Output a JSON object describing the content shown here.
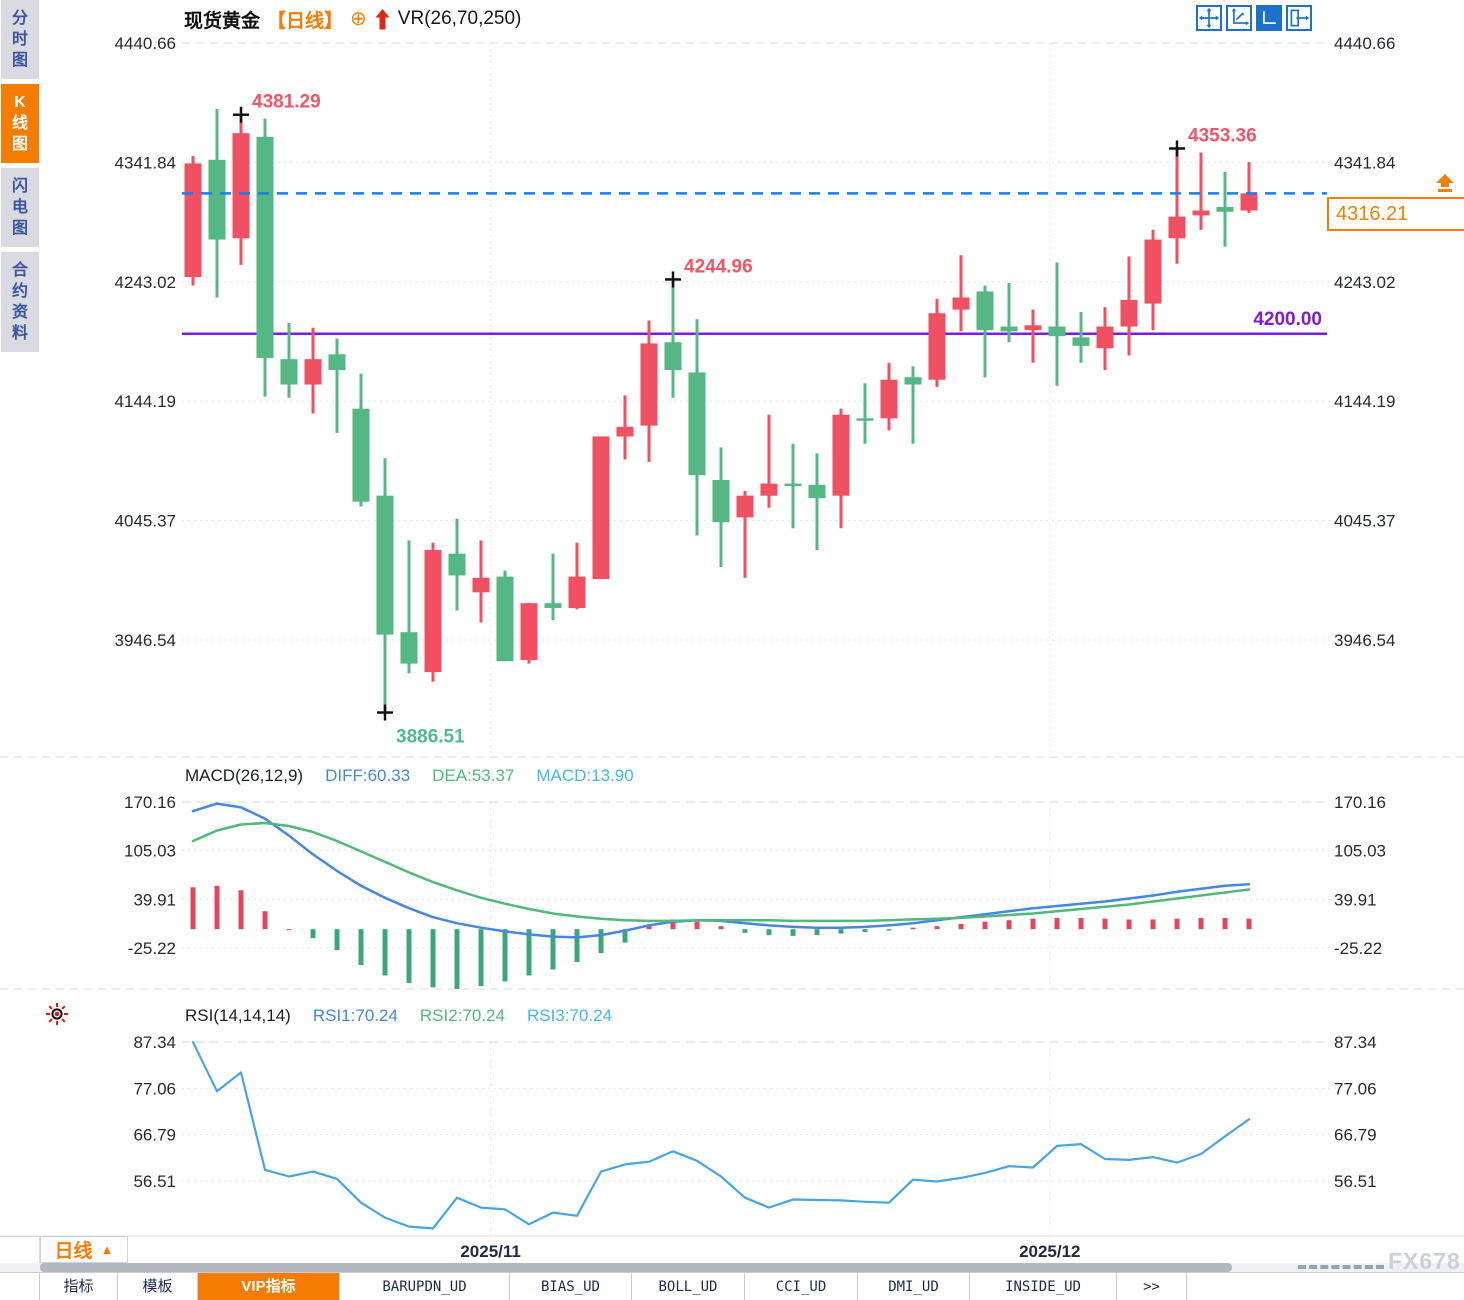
{
  "header": {
    "symbol": "现货黄金",
    "period": "【日线】",
    "indicator": "VR(26,70,250)"
  },
  "sidebar": {
    "items": [
      {
        "label": "分时图",
        "active": false
      },
      {
        "label": "K线图",
        "active": true
      },
      {
        "label": "闪电图",
        "active": false
      },
      {
        "label": "合约资料",
        "active": false
      }
    ]
  },
  "toolbar": {
    "icons": [
      {
        "name": "move-icon",
        "active": false
      },
      {
        "name": "fit-axis-icon",
        "active": false
      },
      {
        "name": "auto-scale-icon",
        "active": true
      },
      {
        "name": "pan-right-icon",
        "active": false
      }
    ]
  },
  "price_tag": {
    "value": "4316.21"
  },
  "macd_header": {
    "name": "MACD(26,12,9)",
    "diff": "DIFF:60.33",
    "dea": "DEA:53.37",
    "macd": "MACD:13.90"
  },
  "rsi_header": {
    "name": "RSI(14,14,14)",
    "rsi1": "RSI1:70.24",
    "rsi2": "RSI2:70.24",
    "rsi3": "RSI3:70.24"
  },
  "bottom": {
    "period_label": "日线",
    "tabs": [
      {
        "label": "指标",
        "active": false
      },
      {
        "label": "模板",
        "active": false
      },
      {
        "label": "VIP指标",
        "active": true
      },
      {
        "label": "BARUPDN_UD",
        "active": false
      },
      {
        "label": "BIAS_UD",
        "active": false
      },
      {
        "label": "BOLL_UD",
        "active": false
      },
      {
        "label": "CCI_UD",
        "active": false
      },
      {
        "label": "DMI_UD",
        "active": false
      },
      {
        "label": "INSIDE_UD",
        "active": false
      },
      {
        "label": ">>",
        "active": false
      }
    ],
    "watermark": "FX678"
  },
  "colors": {
    "up": "#f05062",
    "down": "#54b784",
    "accent_orange": "#f57c00",
    "blue_line": "#1b7de6",
    "purple_line": "#7c1ae8",
    "diff": "#4687e0",
    "dea": "#52b87c",
    "macd_cyan": "#45b8e8",
    "rsi": "#49a5e0",
    "hist_up": "#e8445a",
    "hist_down": "#3aa878",
    "high_label": "#f25568",
    "low_label": "#4fbb92",
    "axis_text": "#262a33",
    "date_text": "#222c44"
  },
  "chart_data": {
    "type": "candlestick",
    "title": "现货黄金 日线",
    "y_axis_ticks": [
      4440.66,
      4341.84,
      4243.02,
      4144.19,
      4045.37,
      3946.54
    ],
    "x_axis_labels": [
      {
        "label": "2025/11",
        "at_candle": 12.4
      },
      {
        "label": "2025/12",
        "at_candle": 35.7
      }
    ],
    "support_line": {
      "price": 4200.0,
      "label": "4200.00"
    },
    "last_price_line": {
      "price": 4316.21,
      "label": "4316.21"
    },
    "annotations": [
      {
        "price": 4381.29,
        "candle": 2,
        "type": "high"
      },
      {
        "price": 3886.51,
        "candle": 8,
        "type": "low"
      },
      {
        "price": 4244.96,
        "candle": 20,
        "type": "high"
      },
      {
        "price": 4353.36,
        "candle": 41,
        "type": "high"
      }
    ],
    "candles": [
      [
        4247,
        4347,
        4240,
        4341
      ],
      [
        4344,
        4386,
        4230,
        4278
      ],
      [
        4279,
        4381.29,
        4257,
        4366
      ],
      [
        4363,
        4378,
        4148,
        4180
      ],
      [
        4179,
        4209,
        4147,
        4158
      ],
      [
        4158,
        4205,
        4134,
        4179
      ],
      [
        4183,
        4196,
        4118,
        4170
      ],
      [
        4138,
        4167,
        4057,
        4061
      ],
      [
        4066,
        4097,
        3886.51,
        3951
      ],
      [
        3953,
        4029,
        3919,
        3927
      ],
      [
        3920,
        4027,
        3912,
        4021
      ],
      [
        4018,
        4047,
        3971,
        4000
      ],
      [
        3986,
        4029,
        3961,
        3998
      ],
      [
        3999,
        4004,
        3929,
        3929
      ],
      [
        3930,
        3977,
        3927,
        3977
      ],
      [
        3977,
        4018,
        3963,
        3973
      ],
      [
        3973,
        4027,
        3972,
        3999
      ],
      [
        3997,
        4115,
        3997,
        4115
      ],
      [
        4115,
        4149,
        4096,
        4123
      ],
      [
        4124,
        4211,
        4094,
        4192
      ],
      [
        4193,
        4244.96,
        4147,
        4170
      ],
      [
        4168,
        4212,
        4033,
        4083
      ],
      [
        4079,
        4106,
        4007,
        4044
      ],
      [
        4048,
        4070,
        3998,
        4066
      ],
      [
        4066,
        4133,
        4056,
        4076
      ],
      [
        4076,
        4109,
        4039,
        4074
      ],
      [
        4075,
        4101,
        4021,
        4064
      ],
      [
        4066,
        4138,
        4039,
        4133
      ],
      [
        4130,
        4159,
        4109,
        4128
      ],
      [
        4130,
        4176,
        4120,
        4162
      ],
      [
        4164,
        4173,
        4109,
        4158
      ],
      [
        4162,
        4229,
        4156,
        4217
      ],
      [
        4220,
        4265,
        4202,
        4230
      ],
      [
        4235,
        4240,
        4164,
        4203
      ],
      [
        4206,
        4242,
        4193,
        4202
      ],
      [
        4203,
        4220,
        4176,
        4207
      ],
      [
        4206,
        4259,
        4157,
        4198
      ],
      [
        4197,
        4218,
        4176,
        4190
      ],
      [
        4188,
        4222,
        4170,
        4206
      ],
      [
        4206,
        4264,
        4182,
        4228
      ],
      [
        4225,
        4286,
        4203,
        4278
      ],
      [
        4279,
        4353.36,
        4258,
        4297
      ],
      [
        4298,
        4350,
        4286,
        4302
      ],
      [
        4305,
        4334,
        4272,
        4301
      ],
      [
        4302,
        4342,
        4300,
        4316.21
      ]
    ],
    "macd": {
      "label": "MACD(26,12,9)",
      "diff_last": 60.33,
      "dea_last": 53.37,
      "macd_last": 13.9,
      "y_ticks": [
        170.16,
        105.03,
        39.91,
        -25.22
      ],
      "diff": [
        158,
        168,
        163,
        148,
        125,
        100,
        78,
        58,
        42,
        28,
        16,
        8,
        2,
        -3,
        -7,
        -10,
        -11,
        -8,
        -2,
        5,
        10,
        12,
        11,
        8,
        5,
        3,
        2,
        2,
        3,
        5,
        8,
        12,
        16,
        20,
        24,
        28,
        31,
        34,
        37,
        41,
        45,
        50,
        54,
        58,
        60
      ],
      "dea": [
        118,
        132,
        140,
        142,
        138,
        130,
        118,
        104,
        90,
        76,
        63,
        52,
        42,
        34,
        27,
        21,
        17,
        14,
        12,
        11,
        11,
        12,
        12,
        12,
        12,
        11,
        11,
        11,
        11,
        12,
        13,
        14,
        15,
        17,
        19,
        21,
        24,
        27,
        30,
        33,
        37,
        41,
        45,
        49,
        53
      ],
      "hist": [
        56,
        58,
        52,
        24,
        0,
        -12,
        -28,
        -48,
        -62,
        -72,
        -78,
        -80,
        -76,
        -70,
        -62,
        -54,
        -44,
        -32,
        -18,
        6,
        13,
        10,
        4,
        -5,
        -8,
        -9,
        -8,
        -6,
        -4,
        -2,
        2,
        4,
        7,
        10,
        12,
        14,
        15,
        15,
        14,
        13,
        13,
        14,
        15,
        15,
        14
      ]
    },
    "rsi": {
      "label": "RSI(14,14,14)",
      "last": [
        70.24,
        70.24,
        70.24
      ],
      "y_ticks": [
        87.34,
        77.06,
        66.79,
        56.51
      ],
      "values": [
        87.3,
        76.4,
        80.6,
        59.0,
        57.5,
        58.6,
        57.0,
        51.7,
        48.4,
        46.4,
        46.0,
        52.8,
        50.6,
        50.2,
        46.9,
        49.5,
        48.8,
        58.6,
        60.2,
        60.8,
        63.1,
        61.0,
        57.5,
        52.8,
        50.6,
        52.4,
        52.3,
        52.2,
        51.9,
        51.7,
        56.8,
        56.4,
        57.2,
        58.3,
        59.8,
        59.5,
        64.3,
        64.7,
        61.4,
        61.2,
        61.8,
        60.6,
        62.5,
        66.4,
        70.2
      ]
    }
  }
}
